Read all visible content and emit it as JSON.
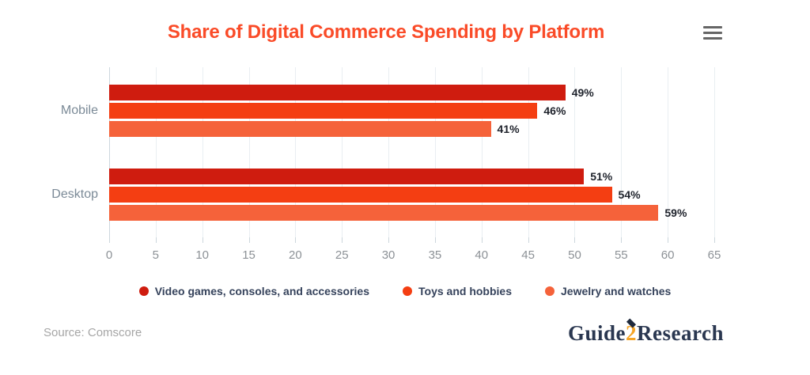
{
  "header": {
    "title": "Share of Digital Commerce Spending by Platform",
    "menu_icon": "hamburger-menu"
  },
  "chart_data": {
    "type": "bar",
    "orientation": "horizontal",
    "title": "Share of Digital Commerce Spending by Platform",
    "categories": [
      "Mobile",
      "Desktop"
    ],
    "series": [
      {
        "name": "Video games, consoles, and accessories",
        "color": "#cf1c0f",
        "values": [
          49,
          51
        ]
      },
      {
        "name": "Toys and hobbies",
        "color": "#f43e12",
        "values": [
          46,
          54
        ]
      },
      {
        "name": "Jewelry and watches",
        "color": "#f5623a",
        "values": [
          41,
          59
        ]
      }
    ],
    "value_suffix": "%",
    "xlim": [
      0,
      65
    ],
    "x_ticks": [
      0,
      5,
      10,
      15,
      20,
      25,
      30,
      35,
      40,
      45,
      50,
      55,
      60,
      65
    ],
    "grid": true,
    "legend_position": "bottom",
    "colors": {
      "title": "#fa4b28",
      "category_label": "#7b8a97",
      "tick_label": "#8c9196",
      "data_label": "#1e222b",
      "gridline": "#e9eef2"
    }
  },
  "footer": {
    "source": "Source: Comscore",
    "logo": {
      "part1": "Guide",
      "part2": "2",
      "part3": "Research"
    }
  }
}
